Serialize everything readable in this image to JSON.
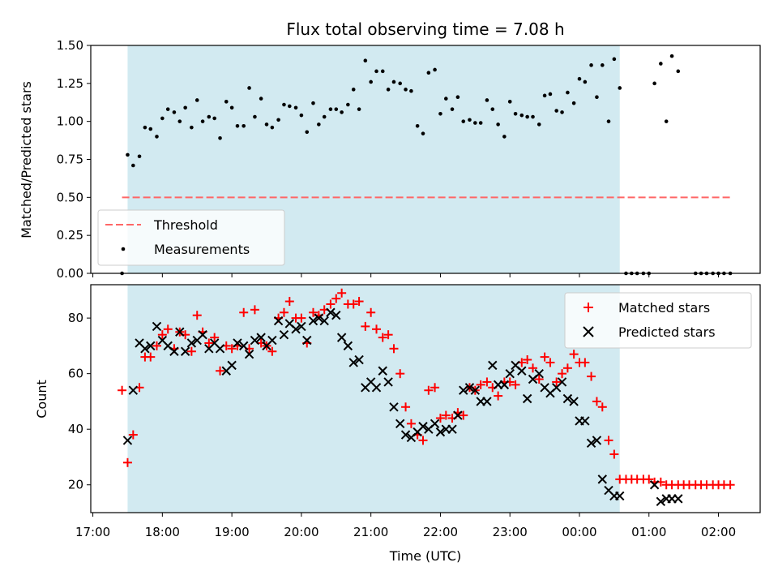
{
  "chart_data": {
    "type": "scatter",
    "title": "Flux total observing time = 7.08 h",
    "xlabel": "Time (UTC)",
    "x_ticks": [
      "17:00",
      "18:00",
      "19:00",
      "20:00",
      "21:00",
      "22:00",
      "23:00",
      "00:00",
      "01:00",
      "02:00"
    ],
    "xlim_hours": [
      16.97,
      26.6
    ],
    "shaded_interval_hours": [
      17.5,
      24.58
    ],
    "shade_color": "#add8e6",
    "top": {
      "ylabel": "Matched/Predicted stars",
      "ylim": [
        0,
        1.5
      ],
      "y_ticks": [
        "0.00",
        "0.25",
        "0.50",
        "0.75",
        "1.00",
        "1.25",
        "1.50"
      ],
      "legend": {
        "placement": "lower-left",
        "entries": [
          "Threshold",
          "Measurements"
        ]
      },
      "threshold": {
        "name": "Threshold",
        "value": 0.5,
        "x_range": [
          17.42,
          26.2
        ],
        "color": "#ff6666",
        "style": "dashed"
      },
      "measurements": {
        "name": "Measurements",
        "color": "#000000",
        "x": [
          17.42,
          17.5,
          17.58,
          17.67,
          17.75,
          17.83,
          17.92,
          18.0,
          18.08,
          18.17,
          18.25,
          18.33,
          18.42,
          18.5,
          18.58,
          18.67,
          18.75,
          18.83,
          18.92,
          19.0,
          19.08,
          19.17,
          19.25,
          19.33,
          19.42,
          19.5,
          19.58,
          19.67,
          19.75,
          19.83,
          19.92,
          20.0,
          20.08,
          20.17,
          20.25,
          20.33,
          20.42,
          20.5,
          20.58,
          20.67,
          20.75,
          20.83,
          20.92,
          21.0,
          21.08,
          21.17,
          21.25,
          21.33,
          21.42,
          21.5,
          21.58,
          21.67,
          21.75,
          21.83,
          21.92,
          22.0,
          22.08,
          22.17,
          22.25,
          22.33,
          22.42,
          22.5,
          22.58,
          22.67,
          22.75,
          22.83,
          22.92,
          23.0,
          23.08,
          23.17,
          23.25,
          23.33,
          23.42,
          23.5,
          23.58,
          23.67,
          23.75,
          23.83,
          23.92,
          24.0,
          24.08,
          24.17,
          24.25,
          24.33,
          24.42,
          24.5,
          24.58,
          24.67,
          24.75,
          24.83,
          24.92,
          25.0,
          25.08,
          25.17,
          25.25,
          25.33,
          25.42,
          25.67,
          25.75,
          25.83,
          25.92,
          26.0,
          26.08,
          26.17
        ],
        "y": [
          0.0,
          0.78,
          0.71,
          0.77,
          0.96,
          0.95,
          0.9,
          1.02,
          1.08,
          1.06,
          1.0,
          1.09,
          0.96,
          1.14,
          1.0,
          1.03,
          1.02,
          0.89,
          1.13,
          1.09,
          0.97,
          0.97,
          1.22,
          1.03,
          1.15,
          0.98,
          0.96,
          1.01,
          1.11,
          1.1,
          1.09,
          1.04,
          0.93,
          1.12,
          0.98,
          1.03,
          1.08,
          1.08,
          1.06,
          1.11,
          1.21,
          1.08,
          1.4,
          1.26,
          1.33,
          1.33,
          1.21,
          1.26,
          1.25,
          1.21,
          1.2,
          0.97,
          0.92,
          1.32,
          1.34,
          1.05,
          1.15,
          1.08,
          1.16,
          1.0,
          1.01,
          0.99,
          0.99,
          1.14,
          1.08,
          0.98,
          0.9,
          1.13,
          1.05,
          1.04,
          1.03,
          1.03,
          0.98,
          1.17,
          1.18,
          1.07,
          1.06,
          1.19,
          1.12,
          1.28,
          1.26,
          1.37,
          1.16,
          1.37,
          1.0,
          1.41,
          1.22,
          0.0,
          0.0,
          0.0,
          0.0,
          0.0,
          1.25,
          1.38,
          1.0,
          1.43,
          1.33,
          0.0,
          0.0,
          0.0,
          0.0,
          0.0,
          0.0,
          0.0
        ]
      }
    },
    "bottom": {
      "ylabel": "Count",
      "ylim": [
        10,
        92
      ],
      "y_ticks": [
        "20",
        "40",
        "60",
        "80"
      ],
      "legend": {
        "placement": "upper-right",
        "entries": [
          "Matched stars",
          "Predicted stars"
        ]
      },
      "series": [
        {
          "name": "Matched stars",
          "marker": "+",
          "color": "#ff0000",
          "x": [
            17.42,
            17.5,
            17.58,
            17.67,
            17.75,
            17.83,
            17.92,
            18.0,
            18.08,
            18.17,
            18.25,
            18.33,
            18.42,
            18.5,
            18.58,
            18.67,
            18.75,
            18.83,
            18.92,
            19.0,
            19.08,
            19.17,
            19.25,
            19.33,
            19.42,
            19.5,
            19.58,
            19.67,
            19.75,
            19.83,
            19.92,
            20.0,
            20.08,
            20.17,
            20.25,
            20.33,
            20.42,
            20.5,
            20.58,
            20.67,
            20.75,
            20.83,
            20.92,
            21.0,
            21.08,
            21.17,
            21.25,
            21.33,
            21.42,
            21.5,
            21.58,
            21.67,
            21.75,
            21.83,
            21.92,
            22.0,
            22.08,
            22.17,
            22.25,
            22.33,
            22.42,
            22.5,
            22.58,
            22.67,
            22.75,
            22.83,
            22.92,
            23.0,
            23.08,
            23.17,
            23.25,
            23.33,
            23.42,
            23.5,
            23.58,
            23.67,
            23.75,
            23.83,
            23.92,
            24.0,
            24.08,
            24.17,
            24.25,
            24.33,
            24.42,
            24.5,
            24.58,
            24.67,
            24.75,
            24.83,
            24.92,
            25.0,
            25.08,
            25.17,
            25.25,
            25.33,
            25.42,
            25.5,
            25.58,
            25.67,
            25.75,
            25.83,
            25.92,
            26.0,
            26.08,
            26.17
          ],
          "y": [
            54,
            28,
            38,
            55,
            66,
            66,
            70,
            74,
            76,
            69,
            75,
            74,
            68,
            81,
            75,
            71,
            73,
            61,
            70,
            69,
            70,
            82,
            69,
            83,
            71,
            70,
            68,
            80,
            82,
            86,
            80,
            80,
            71,
            82,
            81,
            83,
            85,
            87,
            89,
            85,
            85,
            86,
            77,
            82,
            76,
            73,
            74,
            69,
            60,
            48,
            42,
            38,
            36,
            54,
            55,
            44,
            45,
            44,
            46,
            45,
            55,
            54,
            56,
            57,
            55,
            52,
            57,
            57,
            56,
            64,
            65,
            62,
            58,
            66,
            64,
            57,
            60,
            62,
            67,
            64,
            64,
            59,
            50,
            48,
            36,
            31,
            22,
            22,
            22,
            22,
            22,
            22,
            21,
            21,
            20,
            20,
            20,
            20,
            20,
            20,
            20,
            20,
            20,
            20,
            20,
            20
          ]
        },
        {
          "name": "Predicted stars",
          "marker": "x",
          "color": "#000000",
          "x": [
            17.5,
            17.58,
            17.67,
            17.75,
            17.83,
            17.92,
            18.0,
            18.08,
            18.17,
            18.25,
            18.33,
            18.42,
            18.5,
            18.58,
            18.67,
            18.75,
            18.83,
            18.92,
            19.0,
            19.08,
            19.17,
            19.25,
            19.33,
            19.42,
            19.5,
            19.58,
            19.67,
            19.75,
            19.83,
            19.92,
            20.0,
            20.08,
            20.17,
            20.25,
            20.33,
            20.42,
            20.5,
            20.58,
            20.67,
            20.75,
            20.83,
            20.92,
            21.0,
            21.08,
            21.17,
            21.25,
            21.33,
            21.42,
            21.5,
            21.58,
            21.67,
            21.75,
            21.83,
            21.92,
            22.0,
            22.08,
            22.17,
            22.25,
            22.33,
            22.42,
            22.5,
            22.58,
            22.67,
            22.75,
            22.83,
            22.92,
            23.0,
            23.08,
            23.17,
            23.25,
            23.33,
            23.42,
            23.5,
            23.58,
            23.67,
            23.75,
            23.83,
            23.92,
            24.0,
            24.08,
            24.17,
            24.25,
            24.33,
            24.42,
            24.5,
            24.58,
            25.08,
            25.17,
            25.25,
            25.33,
            25.42
          ],
          "y": [
            36,
            54,
            71,
            69,
            70,
            77,
            72,
            70,
            68,
            75,
            68,
            71,
            72,
            74,
            69,
            71,
            69,
            61,
            63,
            71,
            70,
            67,
            72,
            73,
            70,
            72,
            79,
            74,
            78,
            76,
            77,
            72,
            79,
            80,
            79,
            82,
            81,
            73,
            70,
            64,
            65,
            55,
            57,
            55,
            61,
            57,
            48,
            42,
            38,
            37,
            39,
            41,
            40,
            42,
            39,
            40,
            40,
            45,
            54,
            55,
            54,
            50,
            50,
            63,
            56,
            56,
            60,
            63,
            61,
            51,
            58,
            60,
            55,
            53,
            55,
            57,
            51,
            50,
            43,
            43,
            35,
            36,
            22,
            18,
            16,
            16,
            20,
            14,
            15,
            15,
            15
          ]
        }
      ]
    }
  }
}
